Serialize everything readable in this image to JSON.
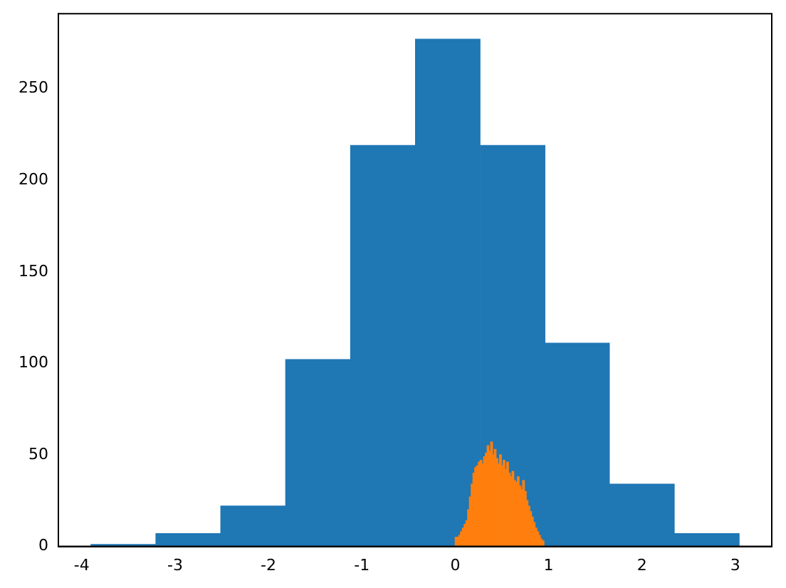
{
  "chart_data": {
    "type": "histogram",
    "xlim": [
      -4.25,
      3.39
    ],
    "xticks": [
      -4,
      -3,
      -2,
      -1,
      0,
      1,
      2,
      3
    ],
    "ylim": [
      0,
      291
    ],
    "yticks": [
      0,
      50,
      100,
      150,
      200,
      250
    ],
    "grid": false,
    "legend": false,
    "bins": [
      -3.9,
      -3.21,
      -2.51,
      -1.82,
      -1.12,
      -0.43,
      0.27,
      0.96,
      1.65,
      2.35,
      3.04
    ],
    "series": [
      {
        "color": "#1f77b4",
        "values": [
          1,
          7,
          22,
          102,
          219,
          277,
          219,
          111,
          34,
          7
        ]
      },
      {
        "color": "#ff7f0e",
        "bins": [
          0,
          0.019,
          0.038,
          0.057,
          0.076,
          0.095,
          0.114,
          0.133,
          0.152,
          0.171,
          0.19,
          0.209,
          0.228,
          0.247,
          0.266,
          0.285,
          0.304,
          0.323,
          0.342,
          0.361,
          0.38,
          0.399,
          0.418,
          0.437,
          0.456,
          0.475,
          0.494,
          0.513,
          0.532,
          0.551,
          0.57,
          0.589,
          0.608,
          0.627,
          0.646,
          0.665,
          0.684,
          0.703,
          0.722,
          0.741,
          0.76,
          0.779,
          0.798,
          0.817,
          0.836,
          0.855,
          0.874,
          0.893,
          0.912,
          0.931,
          0.95
        ],
        "values": [
          5,
          5,
          6,
          8,
          10,
          12,
          14,
          20,
          27,
          34,
          40,
          43,
          44,
          46,
          47,
          45,
          49,
          51,
          55,
          52,
          57,
          50,
          53,
          48,
          45,
          50,
          44,
          47,
          42,
          46,
          40,
          38,
          41,
          36,
          35,
          38,
          33,
          31,
          36,
          30,
          25,
          22,
          19,
          16,
          13,
          10,
          8,
          6,
          4,
          3
        ]
      }
    ]
  }
}
